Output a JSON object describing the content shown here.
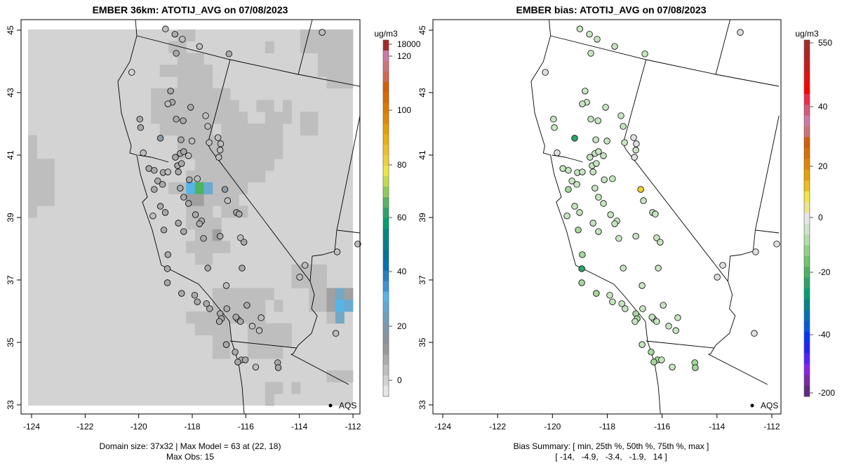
{
  "chart_data": [
    {
      "type": "heatmap",
      "title": "EMBER 36km: ATOTIJ_AVG on 07/08/2023",
      "units": "ug/m3",
      "xlim": [
        -124,
        -112
      ],
      "ylim": [
        33,
        45
      ],
      "xticks": [
        "-124",
        "-122",
        "-120",
        "-118",
        "-116",
        "-114",
        "-112"
      ],
      "yticks": [
        "33",
        "35",
        "37",
        "39",
        "41",
        "43",
        "45"
      ],
      "colorbar_ticks": [
        "18000",
        "120",
        "100",
        "80",
        "60",
        "40",
        "20",
        "0"
      ],
      "colorbar_colors": [
        "#a52a2a",
        "#cc79a7",
        "#cf737a",
        "#d3694f",
        "#d55e00",
        "#d96a00",
        "#de7800",
        "#e28600",
        "#e69f00",
        "#eaaf12",
        "#eec027",
        "#f0d03a",
        "#f0e442",
        "#c2db4d",
        "#8fcb59",
        "#56b462",
        "#2ea369",
        "#009e73",
        "#00897f",
        "#00808c",
        "#007499",
        "#0072b2",
        "#2380c3",
        "#3d93d3",
        "#56b4e9",
        "#5fa8d6",
        "#6e9fbf",
        "#7f98ab",
        "#8c939a",
        "#999999",
        "#ababab",
        "#bfbfbf",
        "#d3d3d3",
        "#e5e5e5"
      ],
      "grid": {
        "ncol": 37,
        "nrow": 32,
        "background_value": 1,
        "runs": [
          [
            0,
            17,
            18,
            5
          ],
          [
            0,
            31,
            36,
            5
          ],
          [
            1,
            16,
            17,
            5
          ],
          [
            1,
            27,
            27,
            5
          ],
          [
            1,
            31,
            36,
            5
          ],
          [
            2,
            17,
            19,
            5
          ],
          [
            2,
            33,
            36,
            5
          ],
          [
            3,
            15,
            20,
            5
          ],
          [
            3,
            33,
            36,
            5
          ],
          [
            4,
            17,
            20,
            5
          ],
          [
            4,
            34,
            36,
            5
          ],
          [
            5,
            14,
            22,
            5
          ],
          [
            6,
            14,
            23,
            5
          ],
          [
            6,
            26,
            27,
            5
          ],
          [
            6,
            29,
            29,
            5
          ],
          [
            7,
            14,
            24,
            5
          ],
          [
            7,
            27,
            29,
            5
          ],
          [
            7,
            31,
            32,
            5
          ],
          [
            8,
            15,
            20,
            5
          ],
          [
            8,
            22,
            28,
            5
          ],
          [
            8,
            31,
            32,
            5
          ],
          [
            9,
            0,
            0,
            5
          ],
          [
            9,
            17,
            28,
            5
          ],
          [
            10,
            0,
            0,
            5
          ],
          [
            10,
            17,
            28,
            5
          ],
          [
            11,
            0,
            2,
            5
          ],
          [
            11,
            19,
            27,
            5
          ],
          [
            12,
            0,
            2,
            5
          ],
          [
            12,
            18,
            26,
            5
          ],
          [
            13,
            0,
            2,
            5
          ],
          [
            13,
            16,
            17,
            5
          ],
          [
            13,
            21,
            24,
            5
          ],
          [
            14,
            0,
            2,
            5
          ],
          [
            14,
            20,
            23,
            5
          ],
          [
            15,
            0,
            0,
            5
          ],
          [
            15,
            18,
            20,
            5
          ],
          [
            15,
            22,
            24,
            5
          ],
          [
            16,
            18,
            21,
            5
          ],
          [
            17,
            19,
            20,
            5
          ],
          [
            17,
            21,
            21,
            9
          ],
          [
            18,
            18,
            22,
            5
          ],
          [
            19,
            19,
            20,
            5
          ],
          [
            20,
            30,
            33,
            5
          ],
          [
            21,
            30,
            33,
            5
          ],
          [
            22,
            21,
            27,
            5
          ],
          [
            22,
            32,
            33,
            5
          ],
          [
            23,
            21,
            26,
            5
          ],
          [
            23,
            28,
            28,
            5
          ],
          [
            23,
            32,
            33,
            5
          ],
          [
            24,
            18,
            26,
            5
          ],
          [
            24,
            34,
            34,
            5
          ],
          [
            25,
            19,
            22,
            5
          ],
          [
            25,
            25,
            29,
            5
          ],
          [
            26,
            21,
            22,
            5
          ],
          [
            26,
            25,
            29,
            5
          ],
          [
            27,
            21,
            22,
            5
          ],
          [
            27,
            25,
            28,
            5
          ],
          [
            29,
            34,
            36,
            5
          ],
          [
            30,
            27,
            28,
            5
          ],
          [
            30,
            30,
            30,
            5
          ],
          [
            31,
            27,
            27,
            5
          ]
        ],
        "cells": [
          [
            13,
            18,
            25
          ],
          [
            13,
            19,
            63
          ],
          [
            13,
            20,
            22
          ],
          [
            14,
            18,
            10
          ],
          [
            14,
            19,
            10
          ],
          [
            22,
            34,
            10
          ],
          [
            22,
            35,
            20
          ],
          [
            22,
            36,
            10
          ],
          [
            23,
            34,
            10
          ],
          [
            23,
            35,
            25
          ],
          [
            23,
            36,
            22
          ],
          [
            24,
            35,
            18
          ]
        ]
      },
      "legend": "AQS",
      "footer": [
        "Domain size: 37x32 | Max Model = 63 at (22, 18)",
        "Max Obs: 15"
      ]
    },
    {
      "type": "scatter",
      "title": "EMBER bias: ATOTIJ_AVG on 07/08/2023",
      "units": "ug/m3",
      "xlim": [
        -124,
        -112
      ],
      "ylim": [
        33,
        45
      ],
      "xticks": [
        "-124",
        "-122",
        "-120",
        "-118",
        "-116",
        "-114",
        "-112"
      ],
      "yticks": [
        "33",
        "35",
        "37",
        "39",
        "41",
        "43",
        "45"
      ],
      "colorbar_ticks": [
        "550",
        "40",
        "20",
        "0",
        "-20",
        "-40",
        "-200"
      ],
      "colorbar_colors": [
        "#a52a2a",
        "#b22222",
        "#cc1a1a",
        "#e60e0e",
        "#ff0000",
        "#ee2c4a",
        "#d9577a",
        "#cc79a7",
        "#cf737a",
        "#d55e00",
        "#db6f00",
        "#e28600",
        "#e69f00",
        "#eebd1f",
        "#f0e442",
        "#ece48a",
        "#e6e6e6",
        "#cfe3cc",
        "#b3dcab",
        "#93d18a",
        "#6fc46f",
        "#4bb166",
        "#2ea369",
        "#009e73",
        "#00848a",
        "#0072b2",
        "#005cd6",
        "#0033ff",
        "#2222ff",
        "#5522ff",
        "#8822ee",
        "#7a2aa8",
        "#5e2a82"
      ],
      "legend": "AQS",
      "footer": [
        "Bias Summary: [ min, 25th %, 50th %, 75th %, max ]",
        "[ -14,   -4.9,   -3.4,   -1.9,   14 ]"
      ],
      "bias_summary": {
        "min": -14,
        "p25": -4.9,
        "p50": -3.4,
        "p75": -1.9,
        "max": 14
      }
    }
  ],
  "stations_columns": [
    "lon",
    "lat",
    "obs",
    "bias"
  ],
  "stations": [
    [
      -119.0,
      45.04,
      6,
      -3
    ],
    [
      -118.65,
      44.87,
      8,
      -3
    ],
    [
      -118.37,
      44.71,
      7,
      -3
    ],
    [
      -118.6,
      44.26,
      8,
      -3
    ],
    [
      -117.73,
      44.48,
      6,
      -3
    ],
    [
      -116.63,
      44.24,
      8,
      -3
    ],
    [
      -120.26,
      43.65,
      3,
      0
    ],
    [
      -118.81,
      43.05,
      8,
      -3
    ],
    [
      -118.75,
      42.69,
      8,
      -3
    ],
    [
      -118.91,
      42.64,
      7,
      -3
    ],
    [
      -118.06,
      42.53,
      8,
      -3
    ],
    [
      -117.5,
      42.26,
      6,
      -3
    ],
    [
      -118.6,
      42.15,
      9,
      -3
    ],
    [
      -118.34,
      42.1,
      8,
      -3
    ],
    [
      -117.42,
      41.92,
      6,
      -3
    ],
    [
      -119.96,
      42.15,
      8,
      -3
    ],
    [
      -119.93,
      41.88,
      8,
      -3
    ],
    [
      -119.19,
      41.54,
      13,
      -14
    ],
    [
      -118.42,
      41.49,
      8,
      -3
    ],
    [
      -118.01,
      41.45,
      7,
      -3
    ],
    [
      -117.37,
      41.4,
      6,
      -3
    ],
    [
      -117.04,
      41.56,
      5,
      0
    ],
    [
      -116.94,
      41.36,
      5,
      0
    ],
    [
      -116.96,
      41.16,
      6,
      -3
    ],
    [
      -117.01,
      40.93,
      4,
      0
    ],
    [
      -119.83,
      41.07,
      4,
      0
    ],
    [
      -118.63,
      40.93,
      9,
      -3
    ],
    [
      -118.45,
      41.05,
      8,
      -3
    ],
    [
      -118.32,
      41.11,
      8,
      -3
    ],
    [
      -118.14,
      40.98,
      7,
      -3
    ],
    [
      -118.55,
      40.66,
      8,
      -3
    ],
    [
      -118.4,
      40.73,
      8,
      -3
    ],
    [
      -119.62,
      40.57,
      8,
      -3
    ],
    [
      -119.42,
      40.51,
      9,
      -3
    ],
    [
      -119.09,
      40.44,
      8,
      -3
    ],
    [
      -118.91,
      40.46,
      7,
      -3
    ],
    [
      -118.52,
      40.46,
      8,
      -3
    ],
    [
      -118.11,
      40.21,
      8,
      -3
    ],
    [
      -119.29,
      40.17,
      8,
      -3
    ],
    [
      -119.42,
      39.9,
      9,
      -5
    ],
    [
      -119.11,
      40.06,
      8,
      -3
    ],
    [
      -118.45,
      39.94,
      8,
      -3
    ],
    [
      -117.81,
      40.24,
      6,
      -3
    ],
    [
      -116.78,
      39.9,
      15,
      14
    ],
    [
      -116.68,
      39.54,
      6,
      -3
    ],
    [
      -118.32,
      39.65,
      8,
      -3
    ],
    [
      -118.14,
      39.45,
      8,
      -3
    ],
    [
      -119.19,
      39.36,
      8,
      -3
    ],
    [
      -119.01,
      39.16,
      9,
      -3
    ],
    [
      -119.47,
      39.05,
      7,
      -3
    ],
    [
      -118.52,
      38.82,
      8,
      -3
    ],
    [
      -117.88,
      39.09,
      8,
      -3
    ],
    [
      -117.65,
      38.89,
      9,
      -3
    ],
    [
      -117.73,
      38.8,
      9,
      -3
    ],
    [
      -118.32,
      38.55,
      8,
      -3
    ],
    [
      -117.58,
      38.33,
      8,
      -3
    ],
    [
      -116.96,
      38.4,
      8,
      -3
    ],
    [
      -116.35,
      39.16,
      8,
      -3
    ],
    [
      -116.25,
      39.11,
      8,
      -3
    ],
    [
      -116.2,
      38.35,
      7,
      -3
    ],
    [
      -116.07,
      38.21,
      8,
      -3
    ],
    [
      -119.06,
      38.6,
      8,
      -5
    ],
    [
      -118.91,
      37.81,
      8,
      -5
    ],
    [
      -118.93,
      37.36,
      12,
      -12
    ],
    [
      -118.93,
      36.91,
      9,
      -5
    ],
    [
      -117.42,
      37.38,
      9,
      -3
    ],
    [
      -116.14,
      37.38,
      9,
      -3
    ],
    [
      -118.4,
      36.57,
      9,
      -5
    ],
    [
      -117.91,
      36.51,
      9,
      -3
    ],
    [
      -117.81,
      36.3,
      8,
      -3
    ],
    [
      -117.47,
      36.24,
      8,
      -3
    ],
    [
      -117.35,
      36.08,
      9,
      -3
    ],
    [
      -116.96,
      35.92,
      9,
      -5
    ],
    [
      -116.91,
      35.76,
      10,
      -5
    ],
    [
      -116.99,
      35.67,
      10,
      -3
    ],
    [
      -116.71,
      36.08,
      8,
      -3
    ],
    [
      -116.3,
      35.74,
      9,
      -3
    ],
    [
      -115.96,
      36.19,
      9,
      -3
    ],
    [
      -116.37,
      35.81,
      9,
      -3
    ],
    [
      -116.2,
      35.67,
      9,
      -3
    ],
    [
      -115.43,
      35.79,
      6,
      -3
    ],
    [
      -115.76,
      35.52,
      7,
      -3
    ],
    [
      -115.5,
      35.38,
      7,
      -3
    ],
    [
      -116.73,
      36.82,
      6,
      -3
    ],
    [
      -116.73,
      34.93,
      8,
      -3
    ],
    [
      -116.4,
      34.69,
      8,
      -5
    ],
    [
      -116.17,
      34.44,
      9,
      -5
    ],
    [
      -116.02,
      34.44,
      8,
      -3
    ],
    [
      -116.3,
      34.37,
      9,
      -5
    ],
    [
      -115.63,
      34.21,
      7,
      -3
    ],
    [
      -114.81,
      34.35,
      9,
      -5
    ],
    [
      -114.79,
      34.19,
      12,
      -5
    ],
    [
      -112.64,
      35.29,
      4,
      0
    ],
    [
      -112.59,
      37.9,
      4,
      0
    ],
    [
      -111.82,
      38.15,
      4,
      0
    ],
    [
      -113.99,
      37.09,
      4,
      0
    ],
    [
      -113.79,
      37.47,
      6,
      -1
    ],
    [
      -113.15,
      44.93,
      5,
      0
    ]
  ]
}
